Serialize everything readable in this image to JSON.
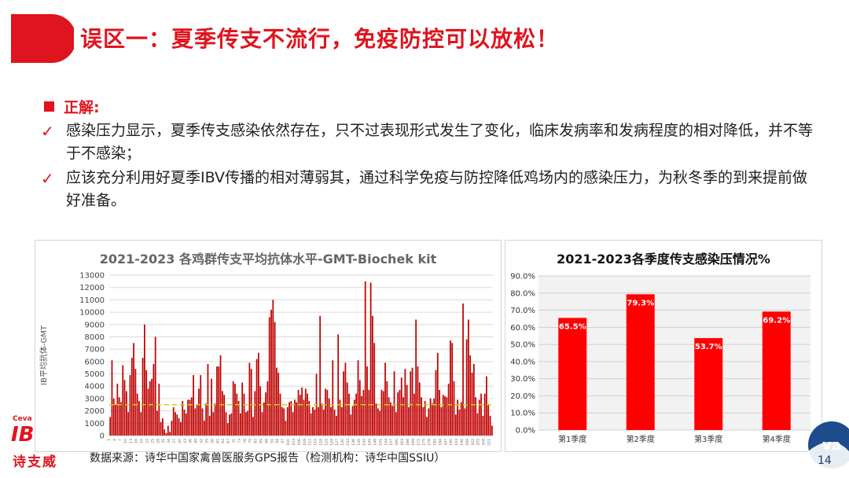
{
  "slide": {
    "title": "误区一：夏季传支不流行，免疫防控可以放松！",
    "heading": "正解:",
    "bullets": [
      "感染压力显示，夏季传支感染依然存在，只不过表现形式发生了变化，临床发病率和发病程度的相对降低，并不等于不感染；",
      "应该充分利用好夏季IBV传播的相对薄弱其，通过科学免疫与防控降低鸡场内的感染压力，为秋冬季的到来提前做好准备。"
    ],
    "source": "数据来源：诗华中国家禽兽医服务GPS报告（检测机构：诗华中国SSIU）",
    "page_number": "14",
    "logo": {
      "small": "Ceva",
      "mark": "IB",
      "name": "诗支威"
    },
    "colors": {
      "accent": "#e0141e",
      "bar": "#c00000",
      "threshold": "#c8d200"
    }
  },
  "chart_data": [
    {
      "type": "bar",
      "title": "2021-2023 各鸡群传支平均抗体水平-GMT-Biochek kit",
      "ylabel": "IB平均抗体-GMT",
      "ylim": [
        0,
        13000
      ],
      "yticks": [
        0,
        1000,
        2000,
        3000,
        4000,
        5000,
        6000,
        7000,
        8000,
        9000,
        10000,
        11000,
        12000,
        13000
      ],
      "threshold": 2500,
      "x": [
        1,
        2,
        3,
        4,
        5,
        6,
        7,
        8,
        9,
        10,
        11,
        12,
        13,
        14,
        15,
        16,
        17,
        18,
        19,
        20,
        21,
        22,
        23,
        24,
        25,
        26,
        27,
        28,
        29,
        30,
        31,
        32,
        33,
        34,
        35,
        36,
        37,
        38,
        39,
        40,
        41,
        42,
        43,
        44,
        45,
        46,
        47,
        48,
        49,
        50,
        51,
        52,
        53,
        54,
        55,
        56,
        57,
        58,
        59,
        60,
        61,
        62,
        63,
        64,
        65,
        66,
        67,
        68,
        69,
        70,
        71,
        72,
        73,
        74,
        75,
        76,
        77,
        78,
        79,
        80,
        81,
        82,
        83,
        84,
        85,
        86,
        87,
        88,
        89,
        90,
        91,
        92,
        93,
        94,
        95,
        96,
        97,
        98,
        99,
        100,
        101,
        102,
        103,
        104,
        105,
        106,
        107,
        108,
        109,
        110,
        111,
        112,
        113,
        114,
        115,
        116,
        117,
        118,
        119,
        120,
        121,
        122,
        123,
        124,
        125,
        126,
        127,
        128,
        129,
        130,
        131,
        132,
        133,
        134,
        135,
        136,
        137,
        138,
        139,
        140,
        141,
        142,
        143,
        144,
        145,
        146,
        147,
        148,
        149,
        150,
        151,
        152,
        153,
        154,
        155,
        156,
        157,
        158,
        159,
        160,
        161,
        162,
        163,
        164,
        165,
        166,
        167,
        168,
        169,
        170,
        171,
        172,
        173,
        174,
        175,
        176,
        177,
        178,
        179,
        180,
        181,
        182,
        183,
        184,
        185,
        186,
        187,
        188,
        189,
        190,
        191,
        192,
        193,
        194,
        195,
        196,
        197,
        198,
        199,
        200,
        201,
        202,
        203,
        204,
        205,
        206,
        207,
        208,
        209,
        210,
        211,
        212
      ],
      "values": [
        1500,
        6100,
        3000,
        2500,
        4200,
        3100,
        2700,
        5700,
        4500,
        3600,
        1900,
        4900,
        6300,
        7500,
        5400,
        3400,
        2800,
        1900,
        6300,
        9000,
        5300,
        3800,
        4400,
        4600,
        5800,
        8000,
        2000,
        4200,
        1100,
        1400,
        500,
        200,
        800,
        300,
        1200,
        2300,
        1900,
        1700,
        1400,
        1100,
        2800,
        2100,
        1800,
        2900,
        2900,
        3100,
        4900,
        2200,
        2500,
        3800,
        4900,
        2200,
        1200,
        2600,
        5800,
        1600,
        4600,
        1900,
        2600,
        5600,
        5600,
        6500,
        3600,
        3300,
        1900,
        1000,
        1700,
        1800,
        4400,
        4200,
        3400,
        2800,
        1800,
        4300,
        3400,
        1900,
        2000,
        5900,
        5400,
        1500,
        3600,
        6200,
        6700,
        4000,
        1900,
        2700,
        3500,
        4400,
        9600,
        10200,
        11000,
        9200,
        5500,
        5100,
        3400,
        2300,
        2200,
        1200,
        2300,
        2700,
        2800,
        1900,
        2900,
        2700,
        3700,
        3300,
        3900,
        2900,
        3800,
        3400,
        2800,
        1800,
        2300,
        2100,
        5000,
        2300,
        9700,
        2600,
        2100,
        3800,
        3700,
        3000,
        2300,
        6100,
        2100,
        1600,
        8200,
        2900,
        2300,
        5200,
        5900,
        4300,
        3400,
        1700,
        2400,
        2900,
        3400,
        6100,
        4500,
        3200,
        3700,
        12500,
        5600,
        3700,
        12400,
        9700,
        7500,
        2600,
        2200,
        2000,
        3700,
        3600,
        5900,
        4400,
        3100,
        2700,
        2400,
        5200,
        1900,
        3500,
        3700,
        4700,
        3100,
        5400,
        4100,
        2300,
        5200,
        5500,
        3400,
        9400,
        5600,
        4300,
        3100,
        2300,
        2800,
        1500,
        2200,
        3000,
        2600,
        3000,
        5300,
        6700,
        3700,
        2300,
        3300,
        3200,
        3100,
        4200,
        7700,
        7500,
        4400,
        1700,
        2900,
        2100,
        2700,
        10700,
        2200,
        7800,
        9400,
        6500,
        5100,
        5800,
        3100,
        1800,
        2900,
        3400,
        1600,
        3400,
        4800,
        2500,
        1600,
        800
      ],
      "color": "#c00000"
    },
    {
      "type": "bar",
      "title": "2021-2023各季度传支感染压情况%",
      "categories": [
        "第1季度",
        "第2季度",
        "第3季度",
        "第4季度"
      ],
      "values": [
        65.5,
        79.3,
        53.7,
        69.2
      ],
      "labels": [
        "65.5%",
        "79.3%",
        "53.7%",
        "69.2%"
      ],
      "ylim": [
        0,
        90
      ],
      "yticks": [
        "0.0%",
        "10.0%",
        "20.0%",
        "30.0%",
        "40.0%",
        "50.0%",
        "60.0%",
        "70.0%",
        "80.0%",
        "90.0%"
      ],
      "color": "#ff0000"
    }
  ]
}
